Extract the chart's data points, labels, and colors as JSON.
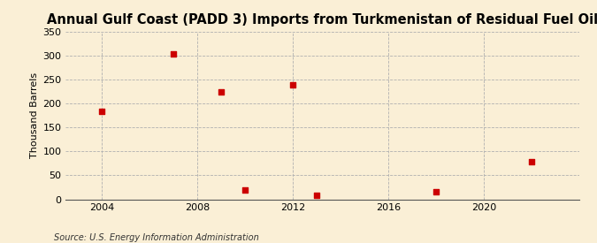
{
  "title": "Annual Gulf Coast (PADD 3) Imports from Turkmenistan of Residual Fuel Oil",
  "ylabel": "Thousand Barrels",
  "source": "Source: U.S. Energy Information Administration",
  "background_color": "#faefd6",
  "plot_bg_color": "#faefd6",
  "data_points": [
    {
      "year": 2004,
      "value": 183
    },
    {
      "year": 2007,
      "value": 304
    },
    {
      "year": 2009,
      "value": 224
    },
    {
      "year": 2010,
      "value": 19
    },
    {
      "year": 2012,
      "value": 238
    },
    {
      "year": 2013,
      "value": 8
    },
    {
      "year": 2018,
      "value": 15
    },
    {
      "year": 2022,
      "value": 79
    }
  ],
  "marker_color": "#cc0000",
  "marker_size": 16,
  "marker_style": "s",
  "xlim": [
    2002.5,
    2024
  ],
  "ylim": [
    0,
    350
  ],
  "xticks": [
    2004,
    2008,
    2012,
    2016,
    2020
  ],
  "yticks": [
    0,
    50,
    100,
    150,
    200,
    250,
    300,
    350
  ],
  "grid_color": "#b0b0b0",
  "grid_style": "--",
  "grid_linewidth": 0.6,
  "vline_color": "#b0b0b0",
  "vline_style": "--",
  "vline_linewidth": 0.6,
  "title_fontsize": 10.5,
  "ylabel_fontsize": 8,
  "tick_fontsize": 8,
  "source_fontsize": 7
}
